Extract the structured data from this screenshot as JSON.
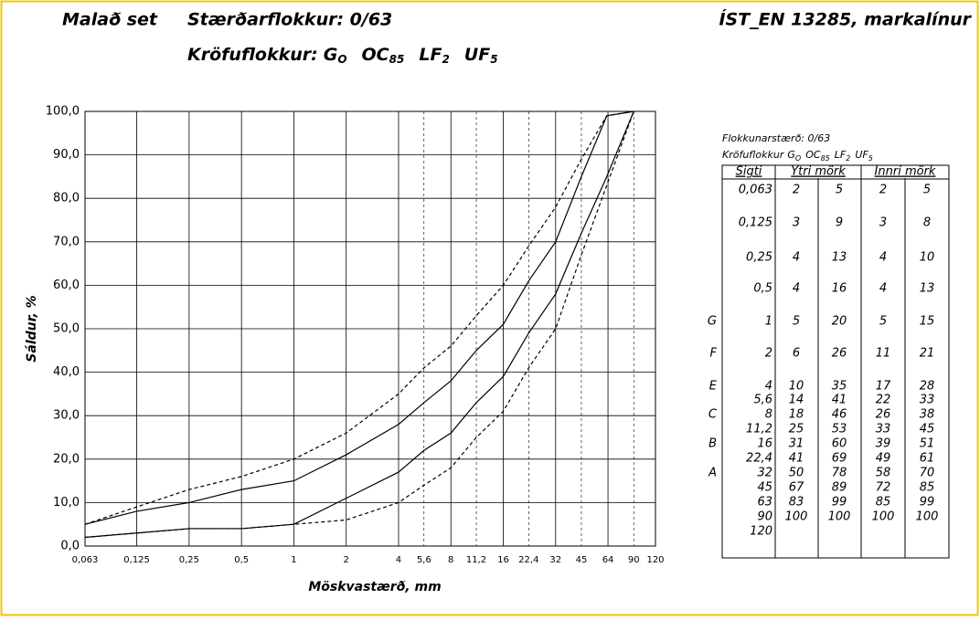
{
  "header": {
    "product": "Malað set",
    "size_class": "Stærðarflokkur: 0/63",
    "requirement_label": "Kröfuflokkur:",
    "requirement": [
      {
        "text": "G",
        "sub": "O"
      },
      {
        "text": "OC",
        "sub": "85"
      },
      {
        "text": "LF",
        "sub": "2"
      },
      {
        "text": "UF",
        "sub": "5"
      }
    ],
    "standard": "ÍST_EN 13285, markalínur"
  },
  "chart_data": {
    "type": "line",
    "x_label": "Möskvastærð, mm",
    "y_label": "Sáldur, %",
    "xscale": "log",
    "x": [
      0.063,
      0.125,
      0.25,
      0.5,
      1,
      2,
      4,
      5.6,
      8,
      11.2,
      16,
      22.4,
      32,
      45,
      63,
      90
    ],
    "series": [
      {
        "name": "Ytri mörk neðri",
        "color": "#000000",
        "style": "dashed",
        "values": [
          2,
          3,
          4,
          4,
          5,
          6,
          10,
          14,
          18,
          25,
          31,
          41,
          50,
          67,
          83,
          100
        ]
      },
      {
        "name": "Ytri mörk efri",
        "color": "#000000",
        "style": "dashed",
        "values": [
          5,
          9,
          13,
          16,
          20,
          26,
          35,
          41,
          46,
          53,
          60,
          69,
          78,
          89,
          99,
          100
        ]
      },
      {
        "name": "Innri mörk neðri",
        "color": "#000000",
        "style": "solid",
        "values": [
          2,
          3,
          4,
          4,
          5,
          11,
          17,
          22,
          26,
          33,
          39,
          49,
          58,
          72,
          85,
          100
        ]
      },
      {
        "name": "Innri mörk efri",
        "color": "#000000",
        "style": "solid",
        "values": [
          5,
          8,
          10,
          13,
          15,
          21,
          28,
          33,
          38,
          45,
          51,
          61,
          70,
          85,
          99,
          100
        ]
      }
    ],
    "xlim": [
      0.063,
      120
    ],
    "ylim": [
      0,
      100
    ],
    "xticks": [
      {
        "value": 0.063,
        "label": "0,063"
      },
      {
        "value": 0.125,
        "label": "0,125"
      },
      {
        "value": 0.25,
        "label": "0,25"
      },
      {
        "value": 0.5,
        "label": "0,5"
      },
      1,
      2,
      4,
      8,
      16,
      32,
      64,
      120
    ],
    "xticks_minor": [
      {
        "value": 5.6,
        "label": "5,6"
      },
      {
        "value": 11.2,
        "label": "11,2"
      },
      {
        "value": 22.4,
        "label": "22,4"
      },
      45,
      90
    ],
    "yticks": [
      {
        "value": 0,
        "label": "0,0"
      },
      {
        "value": 10,
        "label": "10,0"
      },
      {
        "value": 20,
        "label": "20,0"
      },
      {
        "value": 30,
        "label": "30,0"
      },
      {
        "value": 40,
        "label": "40,0"
      },
      {
        "value": 50,
        "label": "50,0"
      },
      {
        "value": 60,
        "label": "60,0"
      },
      {
        "value": 70,
        "label": "70,0"
      },
      {
        "value": 80,
        "label": "80,0"
      },
      {
        "value": 90,
        "label": "90,0"
      },
      {
        "value": 100,
        "label": "100,0"
      }
    ],
    "grid": true
  },
  "table": {
    "caption": "Flokkunarstærð: 0/63",
    "caption_requirement_label": "Kröfuflokkur",
    "headers": [
      "Sigti",
      "Ytri mörk",
      "Innri mörk"
    ],
    "rows": [
      [
        null,
        "0,063",
        "2",
        "5",
        "2",
        "5"
      ],
      [
        null,
        "0,125",
        "3",
        "9",
        "3",
        "8"
      ],
      [
        null,
        "0,25",
        "4",
        "13",
        "4",
        "10"
      ],
      [
        null,
        "0,5",
        "4",
        "16",
        "4",
        "13"
      ],
      [
        "G",
        "1",
        "5",
        "20",
        "5",
        "15"
      ],
      [
        "F",
        "2",
        "6",
        "26",
        "11",
        "21"
      ],
      [
        "E",
        "4",
        "10",
        "35",
        "17",
        "28"
      ],
      [
        null,
        "5,6",
        "14",
        "41",
        "22",
        "33"
      ],
      [
        "C",
        "8",
        "18",
        "46",
        "26",
        "38"
      ],
      [
        null,
        "11,2",
        "25",
        "53",
        "33",
        "45"
      ],
      [
        "B",
        "16",
        "31",
        "60",
        "39",
        "51"
      ],
      [
        null,
        "22,4",
        "41",
        "69",
        "49",
        "61"
      ],
      [
        "A",
        "32",
        "50",
        "78",
        "58",
        "70"
      ],
      [
        null,
        "45",
        "67",
        "89",
        "72",
        "85"
      ],
      [
        null,
        "63",
        "83",
        "99",
        "85",
        "99"
      ],
      [
        null,
        "90",
        "100",
        "100",
        "100",
        "100"
      ],
      [
        null,
        "120",
        null,
        null,
        null,
        null
      ]
    ]
  }
}
